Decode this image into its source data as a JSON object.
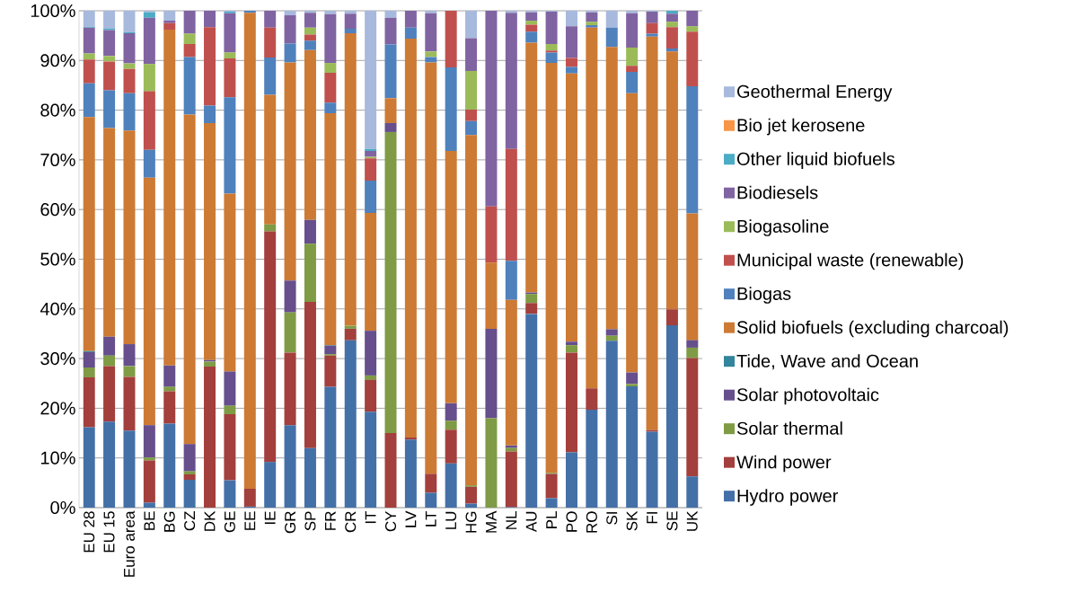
{
  "chart_data": {
    "type": "bar",
    "stacked": true,
    "grid": "y",
    "legend": "right",
    "categories": [
      "EU 28",
      "EU 15",
      "Euro area",
      "BE",
      "BG",
      "CZ",
      "DK",
      "GE",
      "EE",
      "IE",
      "GR",
      "SP",
      "FR",
      "CR",
      "IT",
      "CY",
      "LV",
      "LT",
      "LU",
      "HG",
      "MA",
      "NL",
      "AU",
      "PL",
      "PO",
      "RO",
      "SI",
      "SK",
      "FI",
      "SE",
      "UK"
    ],
    "ylim": [
      0,
      100
    ],
    "yticks": [
      {
        "value": 0,
        "label": "0%"
      },
      {
        "value": 10,
        "label": "10%"
      },
      {
        "value": 20,
        "label": "20%"
      },
      {
        "value": 30,
        "label": "30%"
      },
      {
        "value": 40,
        "label": "40%"
      },
      {
        "value": 50,
        "label": "50%"
      },
      {
        "value": 60,
        "label": "60%"
      },
      {
        "value": 70,
        "label": "70%"
      },
      {
        "value": 80,
        "label": "80%"
      },
      {
        "value": 90,
        "label": "90%"
      },
      {
        "value": 100,
        "label": "100%"
      }
    ],
    "series": [
      {
        "name": "Hydro power",
        "color": "#4470a8",
        "values": [
          16.2,
          17.3,
          15.5,
          1.0,
          16.9,
          5.6,
          0,
          5.5,
          0.2,
          9.2,
          16.6,
          12.0,
          24.3,
          33.7,
          19.3,
          0,
          13.7,
          3.0,
          8.9,
          0.8,
          0,
          0.1,
          39.0,
          1.9,
          11.1,
          19.7,
          33.6,
          24.4,
          15.3,
          36.7,
          6.3
        ]
      },
      {
        "name": "Wind power",
        "color": "#a33f3c",
        "values": [
          10,
          11.2,
          10.8,
          8.5,
          6.5,
          1.1,
          28.4,
          13.3,
          3.6,
          46.4,
          14.6,
          29.4,
          6.3,
          2.3,
          6.4,
          15.0,
          0.4,
          3.8,
          6.8,
          3.4,
          0,
          11.2,
          2.2,
          4.9,
          20.1,
          4.3,
          0,
          0,
          0.3,
          3.2,
          23.8
        ]
      },
      {
        "name": "Solar thermal",
        "color": "#7f9b45",
        "values": [
          2,
          2.1,
          2.2,
          0.6,
          0.9,
          0.6,
          1.0,
          1.7,
          0,
          1.4,
          8.1,
          11.7,
          0.3,
          0.6,
          0.9,
          60.6,
          0,
          0,
          1.8,
          0.3,
          18.0,
          0.7,
          1.8,
          0.2,
          1.5,
          0,
          1.0,
          0.5,
          0,
          0,
          2.1
        ]
      },
      {
        "name": "Solar photovoltaic",
        "color": "#664f8c",
        "values": [
          3.1,
          3.8,
          4.4,
          6.5,
          4.3,
          5.5,
          0.3,
          6.9,
          0,
          0,
          6.4,
          4.8,
          1.7,
          0,
          9.0,
          1.8,
          0,
          0,
          3.5,
          0,
          18.0,
          0.5,
          0.3,
          0,
          0.7,
          0,
          1.3,
          2.3,
          0,
          0,
          1.5
        ]
      },
      {
        "name": "Tide, Wave and Ocean",
        "color": "#31859c",
        "values": [
          0.2,
          0,
          0,
          0,
          0,
          0,
          0,
          0,
          0,
          0,
          0,
          0,
          0.1,
          0,
          0,
          0,
          0,
          0,
          0,
          0,
          0,
          0,
          0,
          0,
          0,
          0,
          0,
          0,
          0,
          0,
          0
        ]
      },
      {
        "name": "Solid biofuels (excluding charcoal)",
        "color": "#cd7a34",
        "values": [
          47.1,
          42,
          43,
          49.8,
          67.6,
          66.3,
          47.7,
          35.8,
          95.8,
          26.1,
          43.9,
          34.2,
          46.7,
          58.9,
          23.7,
          5.0,
          80.3,
          82.8,
          50.8,
          70.5,
          13.3,
          29.3,
          50.3,
          82.5,
          54.0,
          72.6,
          56.8,
          56.2,
          79.2,
          51.9,
          25.5
        ]
      },
      {
        "name": "Biogas",
        "color": "#4f81bd",
        "values": [
          6.8,
          7.6,
          7.5,
          5.6,
          0,
          11.6,
          3.5,
          19.4,
          0.4,
          7.5,
          3.8,
          1.9,
          2.1,
          0.9,
          6.5,
          10.8,
          2.2,
          1.1,
          16.8,
          2.8,
          0,
          7.9,
          2.2,
          2.1,
          1.3,
          0.5,
          3.9,
          4.3,
          0.6,
          0.6,
          25.6
        ]
      },
      {
        "name": "Municipal waste (renewable)",
        "color": "#c0504d",
        "values": [
          4.8,
          5.8,
          4.9,
          11.8,
          1.3,
          2.6,
          15.8,
          7.8,
          0,
          6.0,
          0,
          1.2,
          6.0,
          0,
          4.5,
          0,
          0,
          0,
          11.4,
          2.3,
          11.3,
          22.5,
          1.4,
          0.4,
          1.8,
          0,
          0,
          1.2,
          2.1,
          4.3,
          11.0
        ]
      },
      {
        "name": "Biogasoline",
        "color": "#9bbb59",
        "values": [
          1.2,
          1.1,
          1.1,
          5.5,
          0,
          2.1,
          0,
          1.2,
          0,
          0,
          0,
          1.4,
          2.0,
          0,
          0.3,
          0,
          0,
          1.1,
          0,
          7.8,
          0,
          0,
          0.8,
          1.3,
          0,
          0.7,
          0,
          3.7,
          0,
          1.1,
          1.1
        ]
      },
      {
        "name": "Biodiesels",
        "color": "#8064a2",
        "values": [
          5.2,
          5.2,
          6.1,
          9.3,
          0.5,
          4.6,
          3.3,
          7.9,
          0,
          3.4,
          5.7,
          3.0,
          9.8,
          3.0,
          1.2,
          5.4,
          3.4,
          7.7,
          0,
          6.6,
          39.4,
          27.4,
          1.7,
          6.5,
          6.4,
          1.9,
          0,
          6.9,
          2.3,
          1.6,
          3.1
        ]
      },
      {
        "name": "Other liquid biofuels",
        "color": "#4bacc6",
        "values": [
          0.2,
          0.3,
          0.2,
          1.1,
          0,
          0,
          0,
          0.3,
          0,
          0,
          0,
          0,
          0,
          0,
          0.4,
          0,
          0,
          0,
          0,
          0,
          0,
          0,
          0,
          0,
          0,
          0,
          0,
          0,
          0,
          0.6,
          0
        ]
      },
      {
        "name": "Bio jet kerosene",
        "color": "#f79646",
        "values": [
          0,
          0,
          0,
          0,
          0,
          0,
          0,
          0,
          0,
          0,
          0,
          0,
          0,
          0,
          0,
          0,
          0,
          0,
          0,
          0,
          0,
          0,
          0,
          0,
          0,
          0,
          0,
          0,
          0,
          0,
          0
        ]
      },
      {
        "name": "Geothermal Energy",
        "color": "#a7b9dc",
        "values": [
          3.2,
          3.6,
          4.3,
          0.3,
          2.0,
          0,
          0,
          0.2,
          0,
          0,
          0.9,
          0.4,
          0.7,
          0.6,
          27.8,
          1.4,
          0,
          0.5,
          0,
          5.5,
          0,
          0.5,
          0.3,
          0.2,
          3.1,
          0.3,
          3.4,
          0.5,
          0.2,
          0,
          0
        ]
      }
    ]
  }
}
